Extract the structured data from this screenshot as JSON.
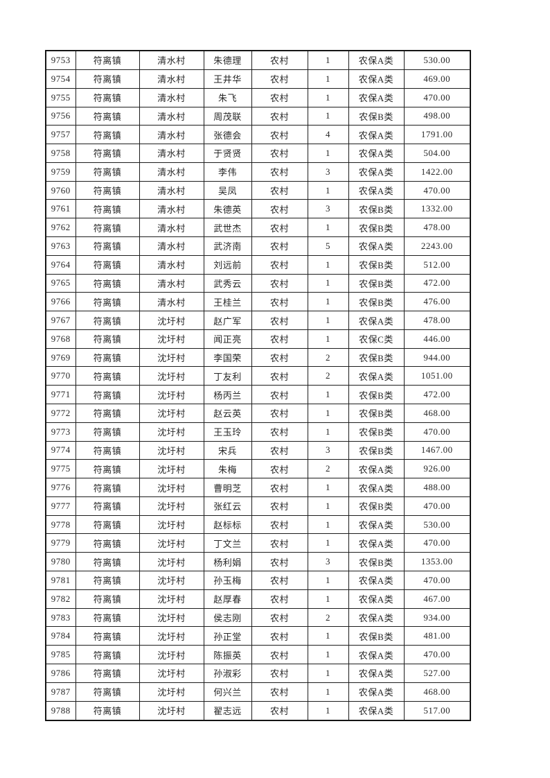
{
  "table": {
    "column_keys": [
      "serial-number",
      "town",
      "village",
      "person-name",
      "area-type",
      "person-count",
      "insurance-class",
      "amount"
    ],
    "rows": [
      [
        "9753",
        "符离镇",
        "清水村",
        "朱德理",
        "农村",
        "1",
        "农保A类",
        "530.00"
      ],
      [
        "9754",
        "符离镇",
        "清水村",
        "王井华",
        "农村",
        "1",
        "农保A类",
        "469.00"
      ],
      [
        "9755",
        "符离镇",
        "清水村",
        "朱飞",
        "农村",
        "1",
        "农保A类",
        "470.00"
      ],
      [
        "9756",
        "符离镇",
        "清水村",
        "周茂联",
        "农村",
        "1",
        "农保B类",
        "498.00"
      ],
      [
        "9757",
        "符离镇",
        "清水村",
        "张德会",
        "农村",
        "4",
        "农保A类",
        "1791.00"
      ],
      [
        "9758",
        "符离镇",
        "清水村",
        "于贤贤",
        "农村",
        "1",
        "农保A类",
        "504.00"
      ],
      [
        "9759",
        "符离镇",
        "清水村",
        "李伟",
        "农村",
        "3",
        "农保A类",
        "1422.00"
      ],
      [
        "9760",
        "符离镇",
        "清水村",
        "吴凤",
        "农村",
        "1",
        "农保A类",
        "470.00"
      ],
      [
        "9761",
        "符离镇",
        "清水村",
        "朱德英",
        "农村",
        "3",
        "农保B类",
        "1332.00"
      ],
      [
        "9762",
        "符离镇",
        "清水村",
        "武世杰",
        "农村",
        "1",
        "农保B类",
        "478.00"
      ],
      [
        "9763",
        "符离镇",
        "清水村",
        "武济南",
        "农村",
        "5",
        "农保A类",
        "2243.00"
      ],
      [
        "9764",
        "符离镇",
        "清水村",
        "刘远前",
        "农村",
        "1",
        "农保B类",
        "512.00"
      ],
      [
        "9765",
        "符离镇",
        "清水村",
        "武秀云",
        "农村",
        "1",
        "农保B类",
        "472.00"
      ],
      [
        "9766",
        "符离镇",
        "清水村",
        "王桂兰",
        "农村",
        "1",
        "农保B类",
        "476.00"
      ],
      [
        "9767",
        "符离镇",
        "沈圩村",
        "赵广军",
        "农村",
        "1",
        "农保A类",
        "478.00"
      ],
      [
        "9768",
        "符离镇",
        "沈圩村",
        "闻正亮",
        "农村",
        "1",
        "农保C类",
        "446.00"
      ],
      [
        "9769",
        "符离镇",
        "沈圩村",
        "李国荣",
        "农村",
        "2",
        "农保B类",
        "944.00"
      ],
      [
        "9770",
        "符离镇",
        "沈圩村",
        "丁友利",
        "农村",
        "2",
        "农保A类",
        "1051.00"
      ],
      [
        "9771",
        "符离镇",
        "沈圩村",
        "杨丙兰",
        "农村",
        "1",
        "农保B类",
        "472.00"
      ],
      [
        "9772",
        "符离镇",
        "沈圩村",
        "赵云英",
        "农村",
        "1",
        "农保B类",
        "468.00"
      ],
      [
        "9773",
        "符离镇",
        "沈圩村",
        "王玉玲",
        "农村",
        "1",
        "农保B类",
        "470.00"
      ],
      [
        "9774",
        "符离镇",
        "沈圩村",
        "宋兵",
        "农村",
        "3",
        "农保B类",
        "1467.00"
      ],
      [
        "9775",
        "符离镇",
        "沈圩村",
        "朱梅",
        "农村",
        "2",
        "农保A类",
        "926.00"
      ],
      [
        "9776",
        "符离镇",
        "沈圩村",
        "曹明芝",
        "农村",
        "1",
        "农保A类",
        "488.00"
      ],
      [
        "9777",
        "符离镇",
        "沈圩村",
        "张红云",
        "农村",
        "1",
        "农保B类",
        "470.00"
      ],
      [
        "9778",
        "符离镇",
        "沈圩村",
        "赵标标",
        "农村",
        "1",
        "农保A类",
        "530.00"
      ],
      [
        "9779",
        "符离镇",
        "沈圩村",
        "丁文兰",
        "农村",
        "1",
        "农保A类",
        "470.00"
      ],
      [
        "9780",
        "符离镇",
        "沈圩村",
        "杨利娟",
        "农村",
        "3",
        "农保B类",
        "1353.00"
      ],
      [
        "9781",
        "符离镇",
        "沈圩村",
        "孙玉梅",
        "农村",
        "1",
        "农保A类",
        "470.00"
      ],
      [
        "9782",
        "符离镇",
        "沈圩村",
        "赵厚春",
        "农村",
        "1",
        "农保A类",
        "467.00"
      ],
      [
        "9783",
        "符离镇",
        "沈圩村",
        "侯志刚",
        "农村",
        "2",
        "农保A类",
        "934.00"
      ],
      [
        "9784",
        "符离镇",
        "沈圩村",
        "孙正堂",
        "农村",
        "1",
        "农保B类",
        "481.00"
      ],
      [
        "9785",
        "符离镇",
        "沈圩村",
        "陈振英",
        "农村",
        "1",
        "农保A类",
        "470.00"
      ],
      [
        "9786",
        "符离镇",
        "沈圩村",
        "孙淑彩",
        "农村",
        "1",
        "农保A类",
        "527.00"
      ],
      [
        "9787",
        "符离镇",
        "沈圩村",
        "何兴兰",
        "农村",
        "1",
        "农保A类",
        "468.00"
      ],
      [
        "9788",
        "符离镇",
        "沈圩村",
        "翟志远",
        "农村",
        "1",
        "农保A类",
        "517.00"
      ]
    ]
  }
}
